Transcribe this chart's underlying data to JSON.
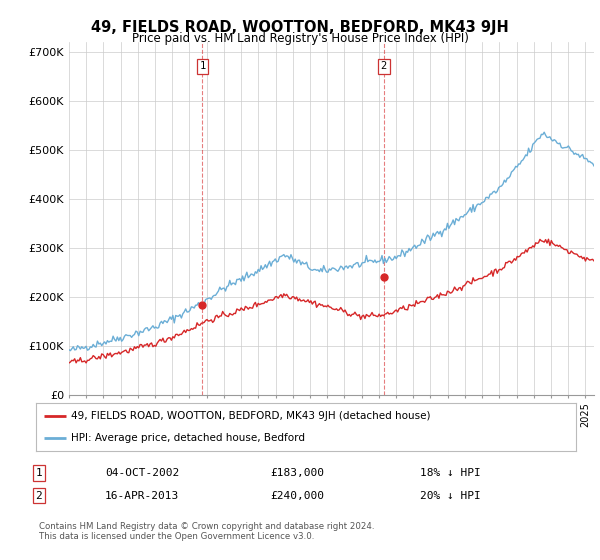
{
  "title": "49, FIELDS ROAD, WOOTTON, BEDFORD, MK43 9JH",
  "subtitle": "Price paid vs. HM Land Registry's House Price Index (HPI)",
  "ylabel_ticks": [
    "£0",
    "£100K",
    "£200K",
    "£300K",
    "£400K",
    "£500K",
    "£600K",
    "£700K"
  ],
  "ytick_values": [
    0,
    100000,
    200000,
    300000,
    400000,
    500000,
    600000,
    700000
  ],
  "ylim": [
    0,
    720000
  ],
  "xlim_start": 1995.0,
  "xlim_end": 2025.5,
  "hpi_color": "#6baed6",
  "price_color": "#d62728",
  "vline_color": "#d62728",
  "marker1_x": 2002.75,
  "marker1_y": 183000,
  "marker2_x": 2013.29,
  "marker2_y": 240000,
  "legend_line1": "49, FIELDS ROAD, WOOTTON, BEDFORD, MK43 9JH (detached house)",
  "legend_line2": "HPI: Average price, detached house, Bedford",
  "table_row1": [
    "1",
    "04-OCT-2002",
    "£183,000",
    "18% ↓ HPI"
  ],
  "table_row2": [
    "2",
    "16-APR-2013",
    "£240,000",
    "20% ↓ HPI"
  ],
  "footer": "Contains HM Land Registry data © Crown copyright and database right 2024.\nThis data is licensed under the Open Government Licence v3.0.",
  "background_color": "#ffffff",
  "grid_color": "#cccccc"
}
